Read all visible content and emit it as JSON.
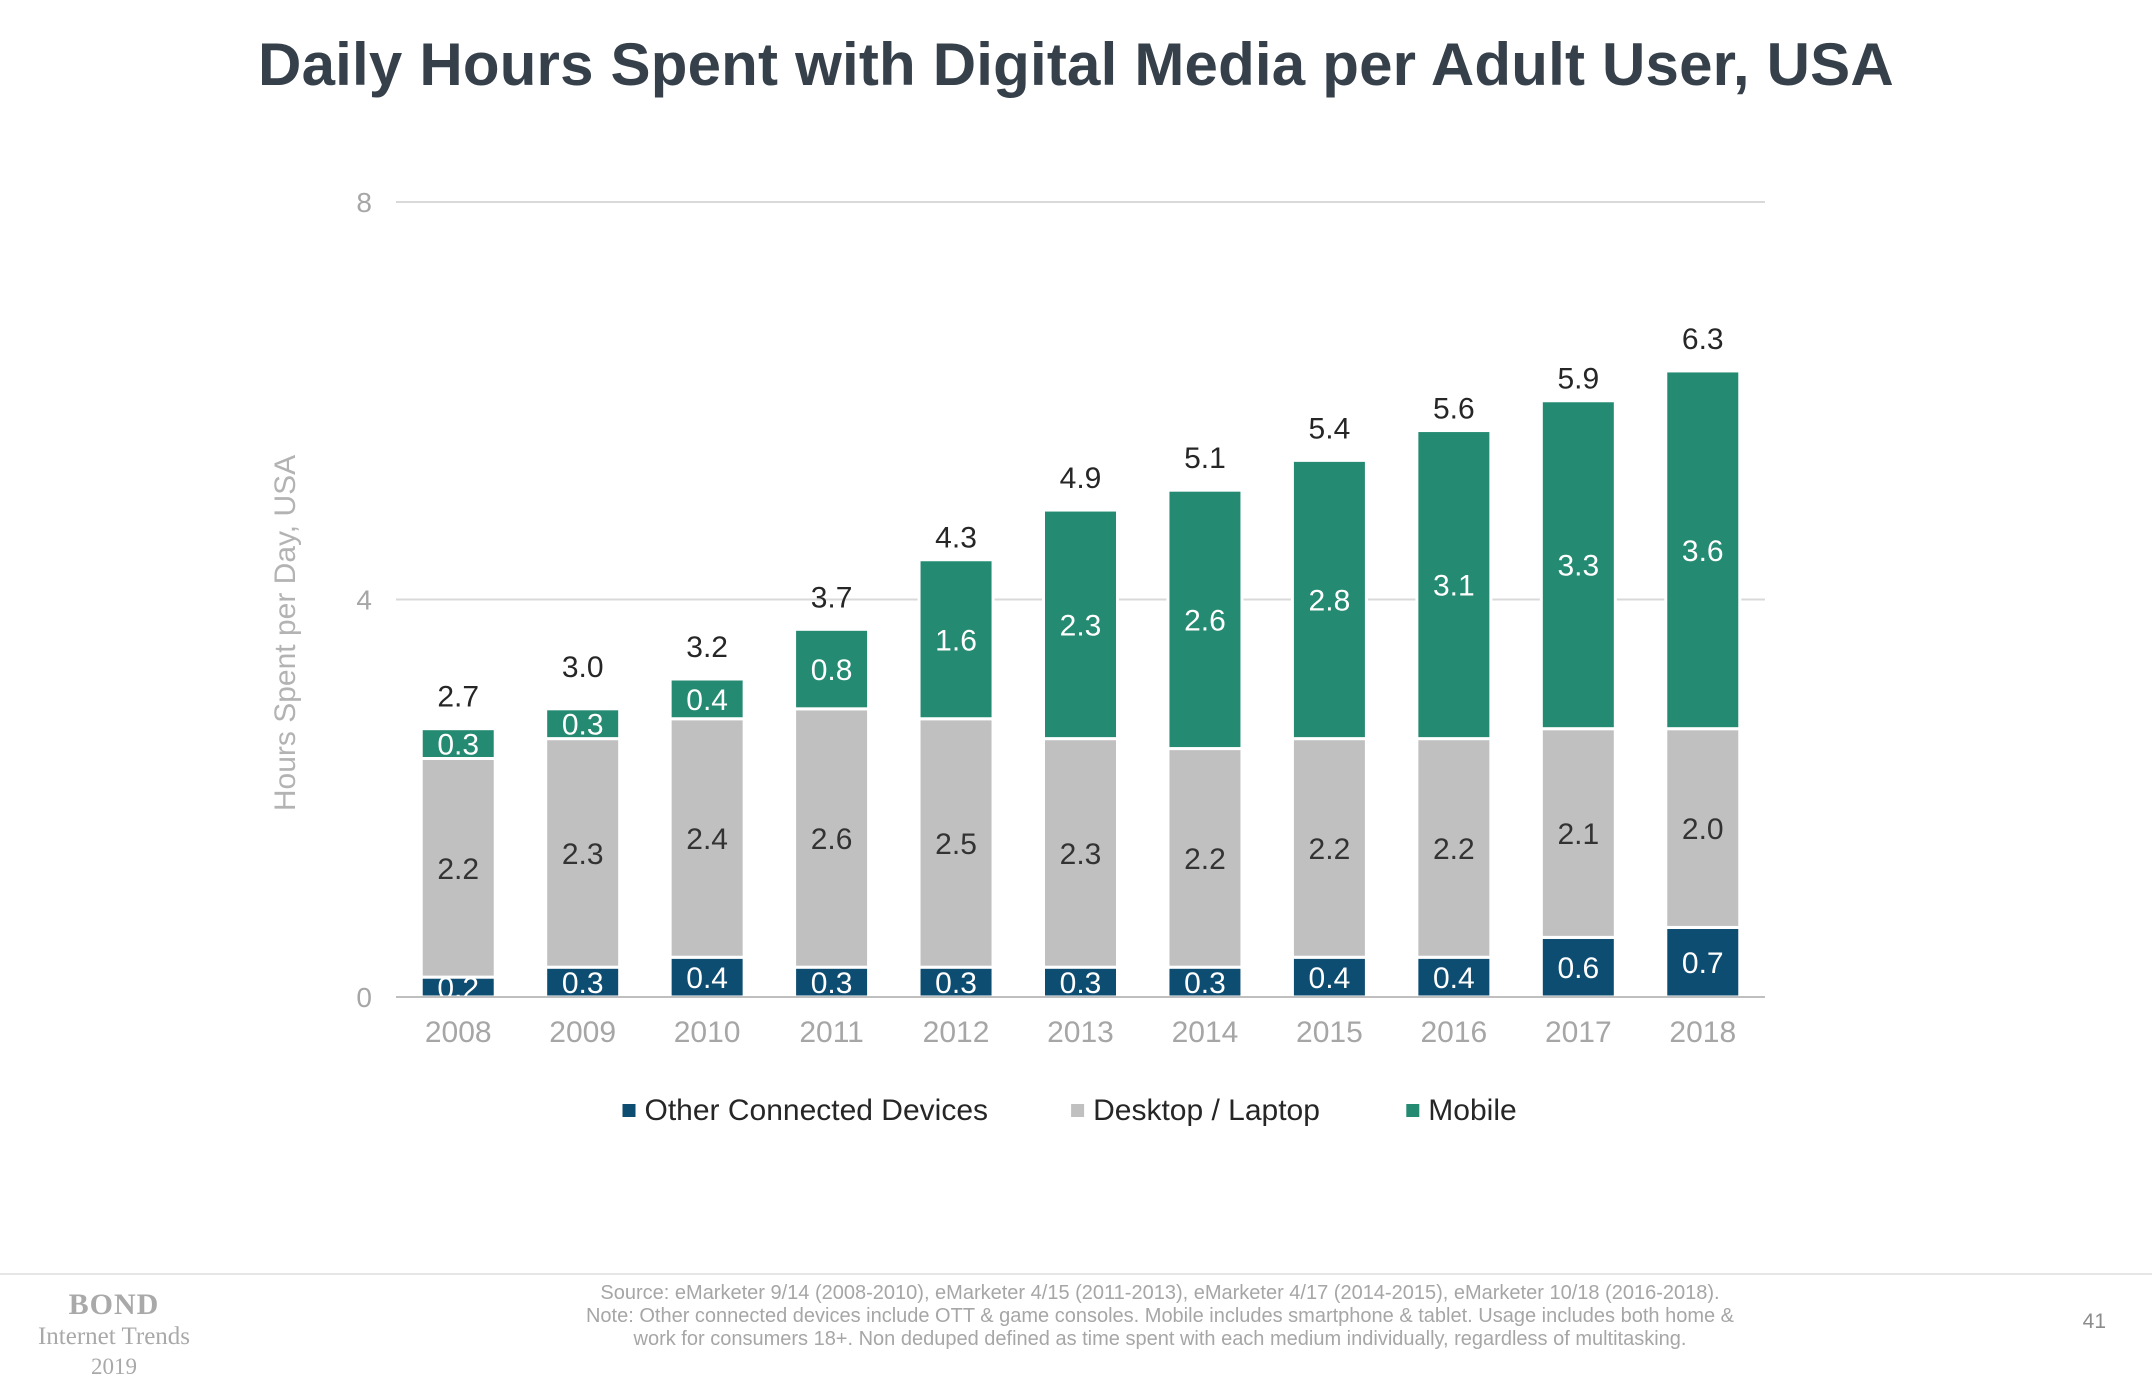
{
  "slide": {
    "title": "Daily Hours Spent with Digital Media per Adult User, USA",
    "page_number": "41"
  },
  "footer": {
    "logo_brand": "BOND",
    "logo_sub": "Internet Trends",
    "logo_year": "2019",
    "source_line_1": "Source: eMarketer 9/14 (2008-2010), eMarketer 4/15 (2011-2013), eMarketer 4/17 (2014-2015), eMarketer 10/18 (2016-2018).",
    "source_line_2": "Note: Other connected devices include OTT & game consoles. Mobile includes smartphone & tablet. Usage includes both home &",
    "source_line_3": "work for consumers 18+. Non deduped defined as time spent with each medium individually, regardless of multitasking."
  },
  "chart_data": {
    "type": "bar",
    "stacked": true,
    "title": "Daily Hours Spent with Digital Media per Adult User, USA",
    "xlabel": "",
    "ylabel": "Hours Spent per Day, USA",
    "ylim": [
      0,
      8
    ],
    "yticks": [
      0,
      4,
      8
    ],
    "grid": true,
    "legend_position": "bottom",
    "categories": [
      "2008",
      "2009",
      "2010",
      "2011",
      "2012",
      "2013",
      "2014",
      "2015",
      "2016",
      "2017",
      "2018"
    ],
    "series": [
      {
        "name": "Other Connected Devices",
        "color": "#0e4d72",
        "values": [
          0.2,
          0.3,
          0.4,
          0.3,
          0.3,
          0.3,
          0.3,
          0.4,
          0.4,
          0.6,
          0.7
        ]
      },
      {
        "name": "Desktop / Laptop",
        "color": "#c0c0c0",
        "values": [
          2.2,
          2.3,
          2.4,
          2.6,
          2.5,
          2.3,
          2.2,
          2.2,
          2.2,
          2.1,
          2.0
        ]
      },
      {
        "name": "Mobile",
        "color": "#248a72",
        "values": [
          0.3,
          0.3,
          0.4,
          0.8,
          1.6,
          2.3,
          2.6,
          2.8,
          3.1,
          3.3,
          3.6
        ]
      }
    ],
    "totals": [
      2.7,
      3.0,
      3.2,
      3.7,
      4.3,
      4.9,
      5.1,
      5.4,
      5.6,
      5.9,
      6.3
    ]
  }
}
